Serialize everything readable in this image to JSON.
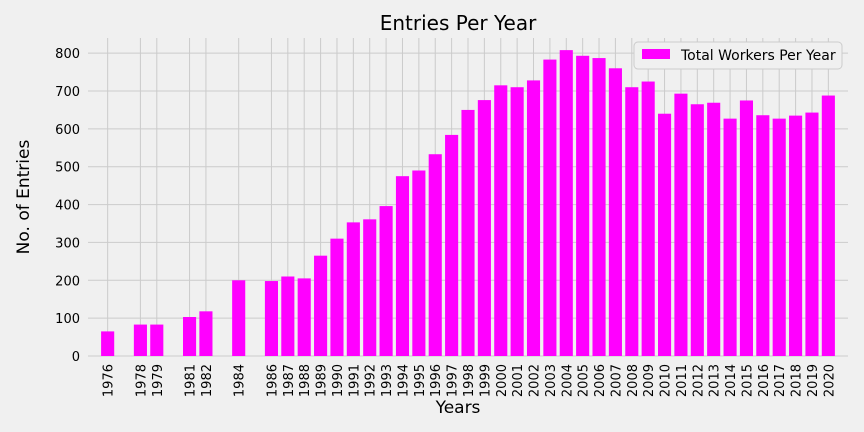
{
  "chart_data": {
    "type": "bar",
    "title": "Entries Per Year",
    "xlabel": "Years",
    "ylabel": "No. of Entries",
    "ylim": [
      0,
      840
    ],
    "yticks": [
      0,
      100,
      200,
      300,
      400,
      500,
      600,
      700,
      800
    ],
    "xlim": [
      1974.8,
      2021.2
    ],
    "grid": true,
    "legend_position": "top-right",
    "series": [
      {
        "name": "Total Workers Per Year",
        "color": "#ff00ff",
        "x": [
          1976,
          1978,
          1979,
          1981,
          1982,
          1984,
          1986,
          1987,
          1988,
          1989,
          1990,
          1991,
          1992,
          1993,
          1994,
          1995,
          1996,
          1997,
          1998,
          1999,
          2000,
          2001,
          2002,
          2003,
          2004,
          2005,
          2006,
          2007,
          2008,
          2009,
          2010,
          2011,
          2012,
          2013,
          2014,
          2015,
          2016,
          2017,
          2018,
          2019,
          2020
        ],
        "values": [
          65,
          83,
          83,
          103,
          118,
          200,
          198,
          210,
          205,
          265,
          310,
          353,
          361,
          396,
          475,
          490,
          533,
          584,
          650,
          676,
          715,
          710,
          728,
          783,
          808,
          793,
          787,
          760,
          710,
          725,
          640,
          693,
          665,
          669,
          627,
          675,
          636,
          627,
          635,
          643,
          688
        ]
      }
    ],
    "categories": [
      "1976",
      "1978",
      "1979",
      "1981",
      "1982",
      "1984",
      "1986",
      "1987",
      "1988",
      "1989",
      "1990",
      "1991",
      "1992",
      "1993",
      "1994",
      "1995",
      "1996",
      "1997",
      "1998",
      "1999",
      "2000",
      "2001",
      "2002",
      "2003",
      "2004",
      "2005",
      "2006",
      "2007",
      "2008",
      "2009",
      "2010",
      "2011",
      "2012",
      "2013",
      "2014",
      "2015",
      "2016",
      "2017",
      "2018",
      "2019",
      "2020"
    ]
  }
}
